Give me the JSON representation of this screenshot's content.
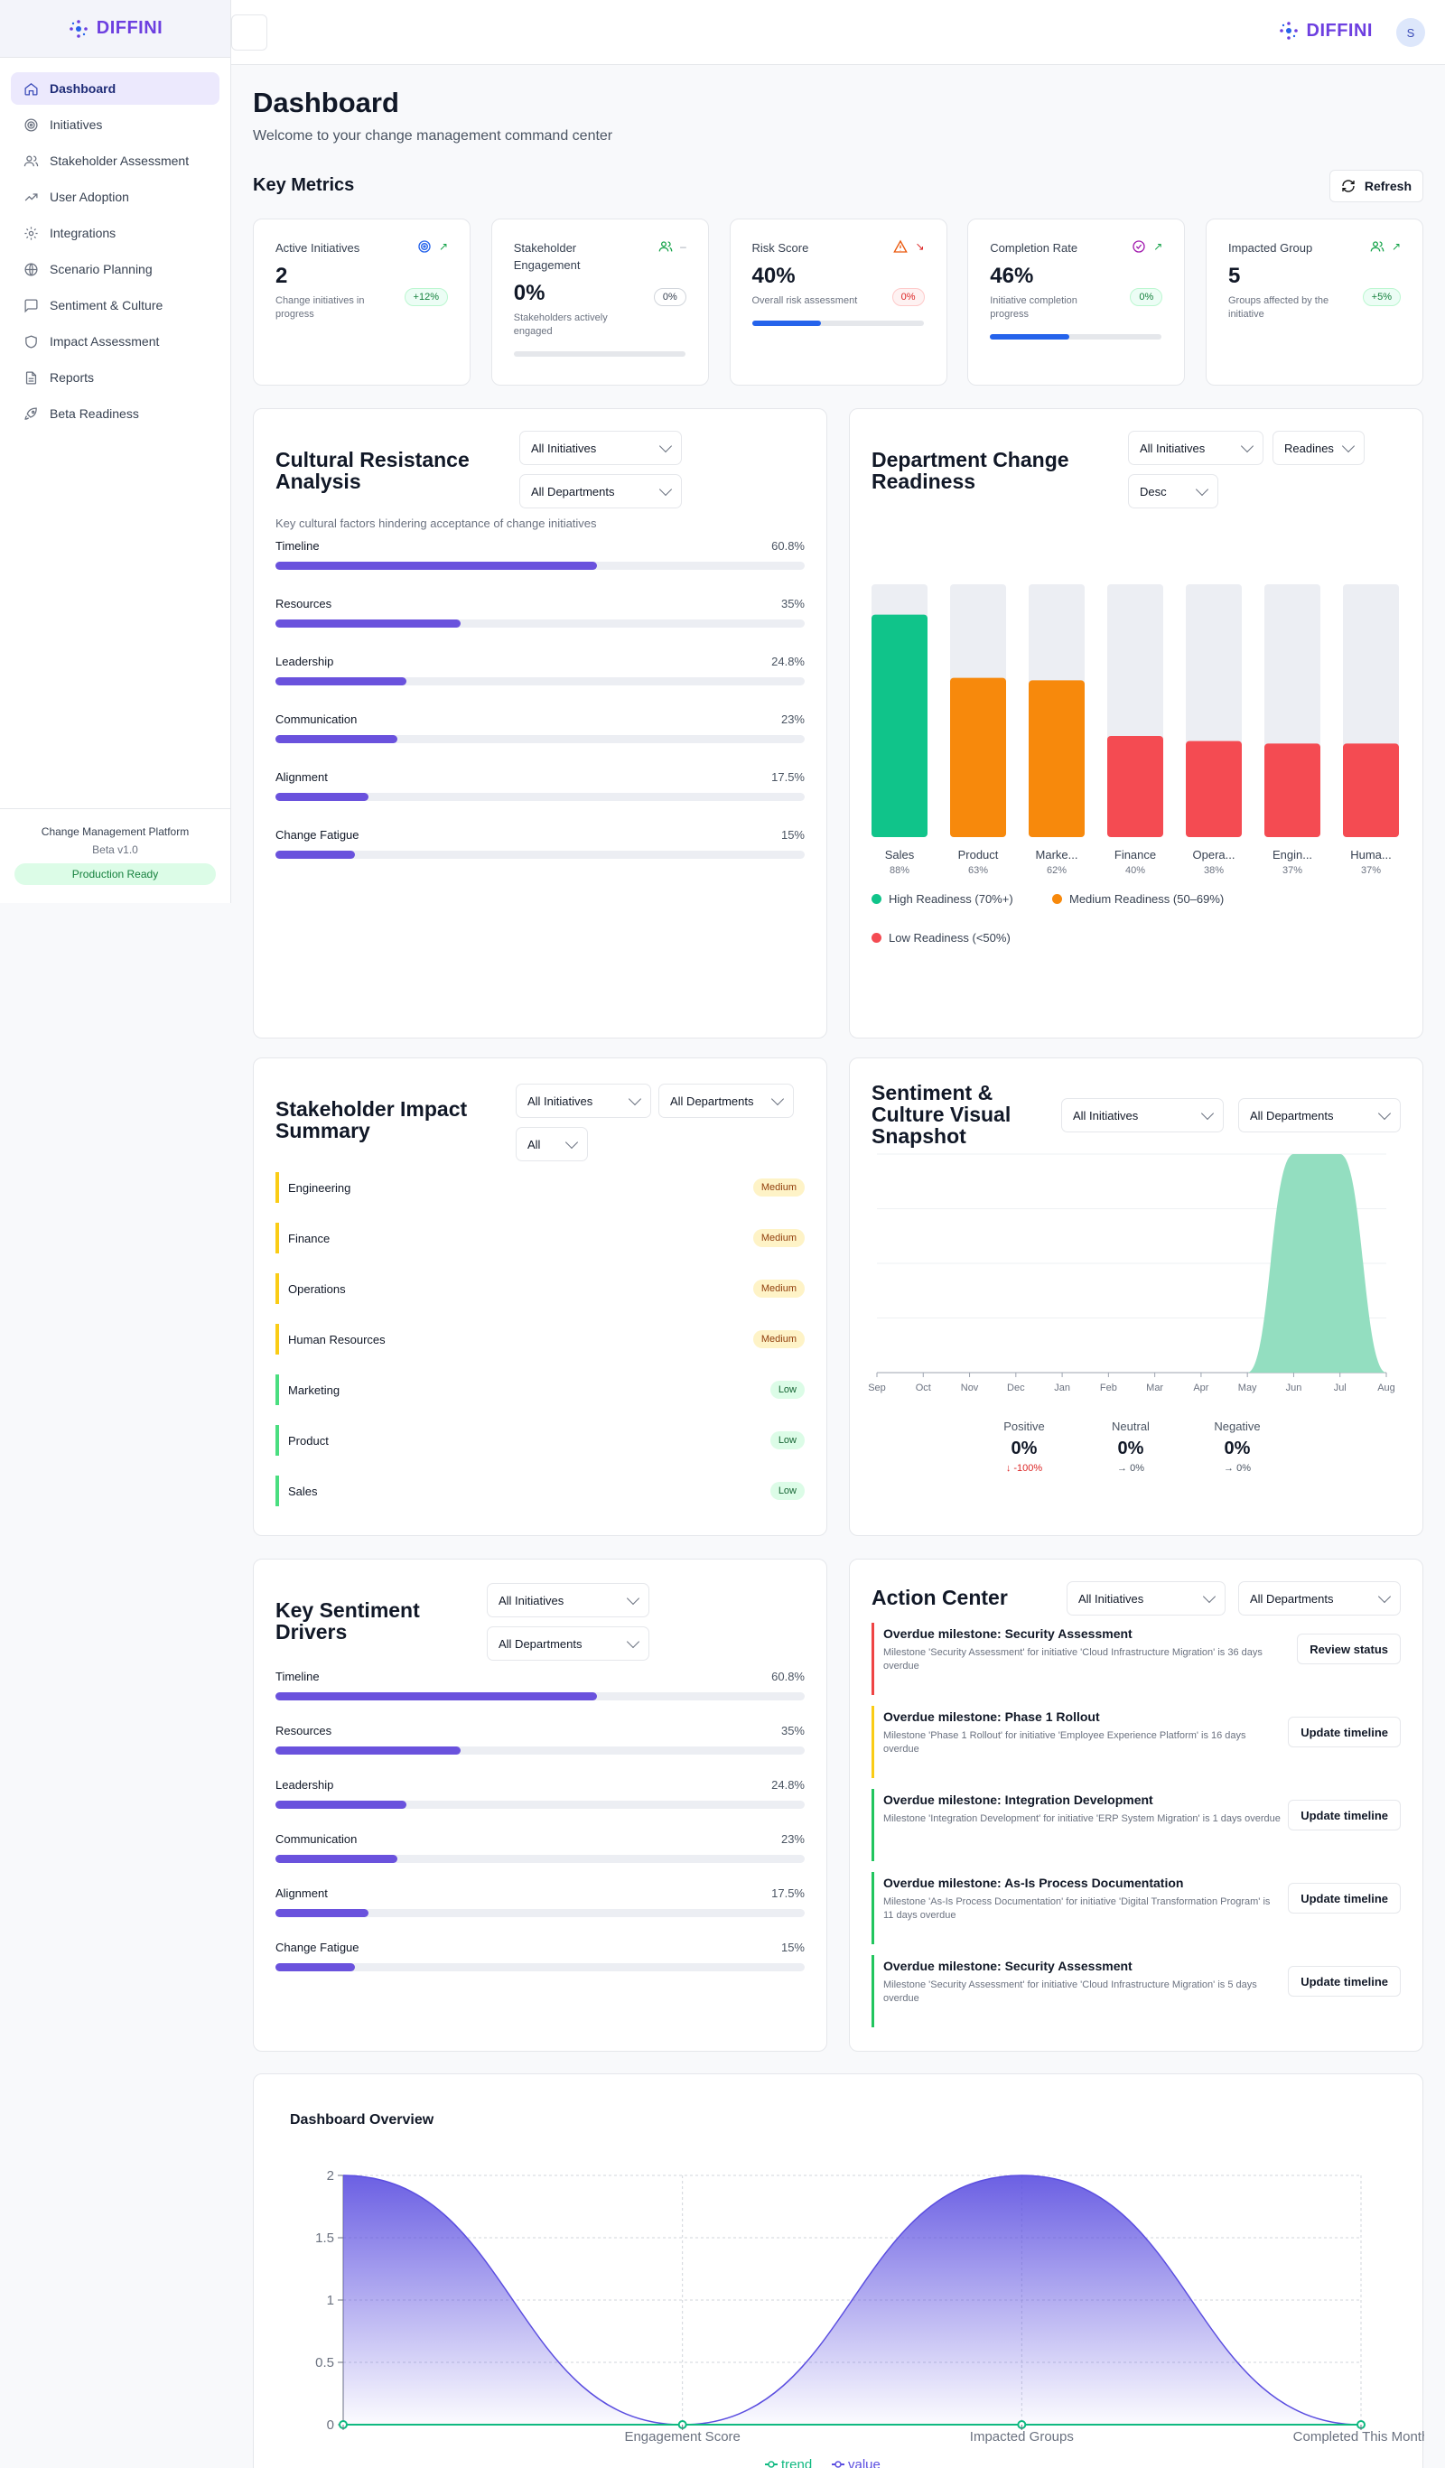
{
  "brand": {
    "name": "DIFFINI"
  },
  "sidebar": {
    "items": [
      {
        "label": "Dashboard",
        "icon": "home-icon",
        "active": true
      },
      {
        "label": "Initiatives",
        "icon": "target-icon"
      },
      {
        "label": "Stakeholder Assessment",
        "icon": "users-icon"
      },
      {
        "label": "User Adoption",
        "icon": "trending-up-icon"
      },
      {
        "label": "Integrations",
        "icon": "gear-icon"
      },
      {
        "label": "Scenario Planning",
        "icon": "globe-icon"
      },
      {
        "label": "Sentiment & Culture",
        "icon": "message-icon"
      },
      {
        "label": "Impact Assessment",
        "icon": "shield-icon"
      },
      {
        "label": "Reports",
        "icon": "file-icon"
      },
      {
        "label": "Beta Readiness",
        "icon": "rocket-icon"
      }
    ],
    "footer": {
      "platform": "Change Management Platform",
      "version": "Beta v1.0",
      "status": "Production Ready"
    }
  },
  "topbar": {
    "avatar": "S"
  },
  "header": {
    "title": "Dashboard",
    "subtitle": "Welcome to your change management command center",
    "section": "Key Metrics",
    "refresh_label": "Refresh"
  },
  "metrics": [
    {
      "title": "Active Initiatives",
      "value": "2",
      "desc": "Change initiatives in progress",
      "chip": "+12%",
      "chip_type": "g",
      "icon": "target-icon",
      "icon_color": "#2563eb",
      "trend": "↗",
      "trend_color": "#16a34a"
    },
    {
      "title": "Stakeholder Engagement",
      "value": "0%",
      "desc": "Stakeholders actively engaged",
      "chip": "0%",
      "chip_type": "n",
      "icon": "users-icon",
      "icon_color": "#16a34a",
      "trend": "–",
      "trend_color": "#9ca3af",
      "progress": 0
    },
    {
      "title": "Risk Score",
      "value": "40%",
      "desc": "Overall risk assessment",
      "chip": "0%",
      "chip_type": "r",
      "icon": "warning-icon",
      "icon_color": "#ea580c",
      "trend": "↘",
      "trend_color": "#dc2626",
      "progress": 0.4
    },
    {
      "title": "Completion Rate",
      "value": "46%",
      "desc": "Initiative completion progress",
      "chip": "0%",
      "chip_type": "g",
      "icon": "check-circle-icon",
      "icon_color": "#a21caf",
      "trend": "↗",
      "trend_color": "#16a34a",
      "progress": 0.46
    },
    {
      "title": "Impacted Group",
      "value": "5",
      "desc": "Groups affected by the initiative",
      "chip": "+5%",
      "chip_type": "g",
      "icon": "users-icon",
      "icon_color": "#16a34a",
      "trend": "↗",
      "trend_color": "#16a34a"
    }
  ],
  "cultural": {
    "title": "Cultural Resistance Analysis",
    "filter1": "All Initiatives",
    "filter2": "All Departments",
    "desc": "Key cultural factors hindering acceptance of change initiatives",
    "items": [
      {
        "label": "Timeline",
        "value": "60.8%",
        "pct": 60.8
      },
      {
        "label": "Resources",
        "value": "35%",
        "pct": 35
      },
      {
        "label": "Leadership",
        "value": "24.8%",
        "pct": 24.8
      },
      {
        "label": "Communication",
        "value": "23%",
        "pct": 23
      },
      {
        "label": "Alignment",
        "value": "17.5%",
        "pct": 17.5
      },
      {
        "label": "Change Fatigue",
        "value": "15%",
        "pct": 15
      }
    ]
  },
  "dept": {
    "title": "Department Change Readiness",
    "filter1": "All Initiatives",
    "filter2": "Readines",
    "filter3": "Desc",
    "legend": [
      {
        "label": "High Readiness (70%+)",
        "color": "#10c48a"
      },
      {
        "label": "Medium Readiness (50–69%)",
        "color": "#f7890c"
      },
      {
        "label": "Low Readiness (<50%)",
        "color": "#f44b52"
      }
    ]
  },
  "stakeholder": {
    "title": "Stakeholder Impact Summary",
    "filter1": "All Initiatives",
    "filter2": "All Departments",
    "filter3": "All",
    "rows": [
      {
        "name": "Engineering",
        "level": "Medium",
        "color": "#facc15"
      },
      {
        "name": "Finance",
        "level": "Medium",
        "color": "#facc15"
      },
      {
        "name": "Operations",
        "level": "Medium",
        "color": "#facc15"
      },
      {
        "name": "Human Resources",
        "level": "Medium",
        "color": "#facc15"
      },
      {
        "name": "Marketing",
        "level": "Low",
        "color": "#4ade80"
      },
      {
        "name": "Product",
        "level": "Low",
        "color": "#4ade80"
      },
      {
        "name": "Sales",
        "level": "Low",
        "color": "#4ade80"
      }
    ]
  },
  "sentiment": {
    "title": "Sentiment & Culture Visual Snapshot",
    "filter1": "All Initiatives",
    "filter2": "All Departments",
    "stats": [
      {
        "label": "Positive",
        "value": "0%",
        "change": "↓ -100%",
        "change_color": "#dc2626"
      },
      {
        "label": "Neutral",
        "value": "0%",
        "change": "→ 0%",
        "change_color": "#4b5563"
      },
      {
        "label": "Negative",
        "value": "0%",
        "change": "→ 0%",
        "change_color": "#4b5563"
      }
    ]
  },
  "drivers": {
    "title": "Key Sentiment Drivers",
    "filter1": "All Initiatives",
    "filter2": "All Departments",
    "items": [
      {
        "label": "Timeline",
        "value": "60.8%",
        "pct": 60.8
      },
      {
        "label": "Resources",
        "value": "35%",
        "pct": 35
      },
      {
        "label": "Leadership",
        "value": "24.8%",
        "pct": 24.8
      },
      {
        "label": "Communication",
        "value": "23%",
        "pct": 23
      },
      {
        "label": "Alignment",
        "value": "17.5%",
        "pct": 17.5
      },
      {
        "label": "Change Fatigue",
        "value": "15%",
        "pct": 15
      }
    ]
  },
  "action_center": {
    "title": "Action Center",
    "filter1": "All Initiatives",
    "filter2": "All Departments",
    "items": [
      {
        "title": "Overdue milestone: Security Assessment",
        "desc": "Milestone 'Security Assessment' for initiative 'Cloud Infrastructure Migration' is 36 days overdue",
        "button": "Review status",
        "color": "#ef4444"
      },
      {
        "title": "Overdue milestone: Phase 1 Rollout",
        "desc": "Milestone 'Phase 1 Rollout' for initiative 'Employee Experience Platform' is 16 days overdue",
        "button": "Update timeline",
        "color": "#facc15"
      },
      {
        "title": "Overdue milestone: Integration Development",
        "desc": "Milestone 'Integration Development' for initiative 'ERP System Migration' is 1 days overdue",
        "button": "Update timeline",
        "color": "#22c55e"
      },
      {
        "title": "Overdue milestone: As-Is Process Documentation",
        "desc": "Milestone 'As-Is Process Documentation' for initiative 'Digital Transformation Program' is 11 days overdue",
        "button": "Update timeline",
        "color": "#22c55e"
      },
      {
        "title": "Overdue milestone: Security Assessment",
        "desc": "Milestone 'Security Assessment' for initiative 'Cloud Infrastructure Migration' is 5 days overdue",
        "button": "Update timeline",
        "color": "#22c55e"
      }
    ]
  },
  "overview": {
    "title": "Dashboard Overview"
  },
  "chart_data": [
    {
      "type": "bar",
      "title": "Department Change Readiness",
      "categories": [
        "Sales",
        "Product",
        "Marke...",
        "Finance",
        "Opera...",
        "Engin...",
        "Huma..."
      ],
      "values": [
        88,
        63,
        62,
        40,
        38,
        37,
        37
      ],
      "value_labels": [
        "88%",
        "63%",
        "62%",
        "40%",
        "38%",
        "37%",
        "37%"
      ],
      "colors": [
        "#10c48a",
        "#f7890c",
        "#f7890c",
        "#f44b52",
        "#f44b52",
        "#f44b52",
        "#f44b52"
      ],
      "ylim": [
        0,
        100
      ]
    },
    {
      "type": "area",
      "title": "Sentiment & Culture Visual Snapshot",
      "x": [
        "Sep",
        "Oct",
        "Nov",
        "Dec",
        "Jan",
        "Feb",
        "Mar",
        "Apr",
        "May",
        "Jun",
        "Jul",
        "Aug"
      ],
      "series": [
        {
          "values": [
            0,
            0,
            0,
            0,
            0,
            0,
            0,
            0,
            0,
            1,
            1,
            0
          ],
          "color": "#8ddcbd"
        }
      ]
    },
    {
      "type": "area",
      "title": "Dashboard Overview",
      "x": [
        "",
        "Engagement Score",
        "Impacted Groups",
        "Completed This Month"
      ],
      "yticks": [
        "0",
        "0.5",
        "1",
        "1.5",
        "2"
      ],
      "ylim": [
        0,
        2
      ],
      "series": [
        {
          "name": "trend",
          "values": [
            0,
            0,
            0,
            0
          ],
          "color": "#10b981"
        },
        {
          "name": "value",
          "values": [
            2,
            0,
            2,
            0
          ],
          "color": "#5b4ee0"
        }
      ]
    }
  ]
}
